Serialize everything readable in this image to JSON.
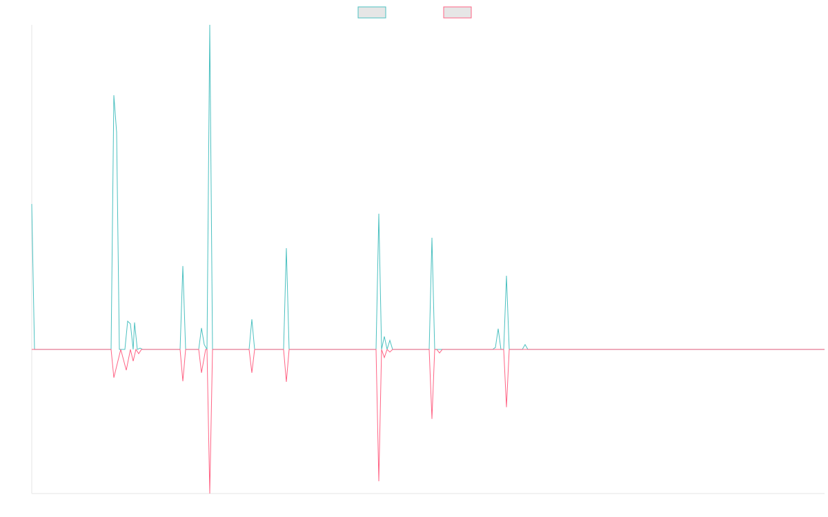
{
  "chart_data": {
    "type": "line",
    "xlim": [
      0,
      1149
    ],
    "ylim": [
      -44.4,
      100
    ],
    "grid": false,
    "legend": "top",
    "series": [
      {
        "color": "#4bc0c0",
        "x": [
          0,
          4,
          115,
          119,
          123,
          127,
          135,
          139,
          143,
          147,
          149,
          153,
          157,
          161,
          215,
          219,
          223,
          242,
          246,
          250,
          254,
          258,
          262,
          315,
          319,
          323,
          365,
          369,
          373,
          499,
          503,
          507,
          511,
          515,
          519,
          523,
          576,
          580,
          584,
          668,
          672,
          676,
          680,
          684,
          688,
          692,
          711,
          715,
          719,
          1149
        ],
        "values": [
          44.8,
          0,
          0,
          78.3,
          66.9,
          0,
          0,
          8.7,
          7.9,
          0,
          8.3,
          0,
          0.4,
          0,
          0,
          25.7,
          0,
          0,
          6.6,
          1.5,
          0,
          100,
          0,
          0,
          9.3,
          0,
          0,
          31.2,
          0,
          0,
          41.8,
          0,
          4.0,
          0,
          2.8,
          0,
          0,
          34.4,
          0,
          0,
          0.6,
          6.4,
          0,
          0,
          22.7,
          0,
          0,
          1.5,
          0,
          0
        ]
      },
      {
        "color": "#ff6384",
        "x": [
          0,
          115,
          119,
          129,
          137,
          143,
          147,
          151,
          155,
          159,
          215,
          219,
          223,
          242,
          246,
          252,
          254,
          258,
          262,
          315,
          319,
          323,
          365,
          369,
          373,
          499,
          503,
          507,
          511,
          515,
          519,
          523,
          576,
          580,
          584,
          587,
          591,
          595,
          684,
          688,
          692,
          1149
        ],
        "values": [
          0,
          0,
          -8.7,
          0,
          -6.4,
          0,
          -3.6,
          0,
          -1.3,
          0,
          0,
          -9.8,
          0,
          0,
          -7.2,
          0,
          0,
          -44.4,
          0,
          0,
          -7.2,
          0,
          0,
          -10,
          0,
          0,
          -40.6,
          0,
          -2.5,
          0,
          -0.8,
          0,
          0,
          -21.4,
          0,
          0,
          -1.1,
          0,
          0,
          -17.8,
          0,
          0
        ]
      }
    ]
  }
}
